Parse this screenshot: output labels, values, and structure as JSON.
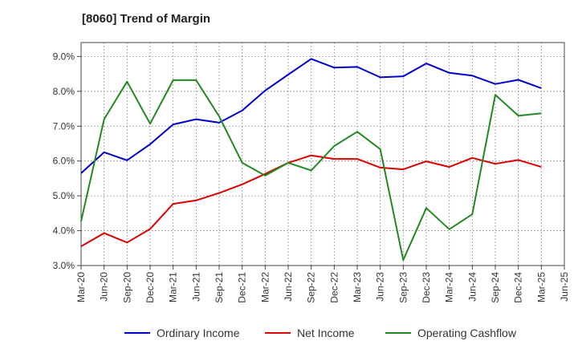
{
  "chart_data": {
    "type": "line",
    "title": "[8060]  Trend of Margin",
    "xlabel": "",
    "ylabel": "",
    "ylim": [
      3.0,
      9.4
    ],
    "y_ticks": [
      3.0,
      4.0,
      5.0,
      6.0,
      7.0,
      8.0,
      9.0
    ],
    "y_tick_labels": [
      "3.0%",
      "4.0%",
      "5.0%",
      "6.0%",
      "7.0%",
      "8.0%",
      "9.0%"
    ],
    "grid": true,
    "legend_position": "bottom",
    "x_tick_labels": [
      "Mar-20",
      "Jun-20",
      "Sep-20",
      "Dec-20",
      "Mar-21",
      "Jun-21",
      "Sep-21",
      "Dec-21",
      "Mar-22",
      "Jun-22",
      "Sep-22",
      "Dec-22",
      "Mar-23",
      "Jun-23",
      "Sep-23",
      "Dec-23",
      "Mar-24",
      "Jun-24",
      "Sep-24",
      "Dec-24",
      "Mar-25",
      "Jun-25"
    ],
    "categories": [
      "Mar-20",
      "Jun-20",
      "Sep-20",
      "Dec-20",
      "Mar-21",
      "Jun-21",
      "Sep-21",
      "Dec-21",
      "Mar-22",
      "Jun-22",
      "Sep-22",
      "Dec-22",
      "Mar-23",
      "Jun-23",
      "Sep-23",
      "Dec-23",
      "Mar-24",
      "Jun-24",
      "Sep-24",
      "Dec-24",
      "Mar-25"
    ],
    "series": [
      {
        "name": "Ordinary Income",
        "color": "#0000cc",
        "values": [
          5.65,
          6.25,
          6.02,
          6.48,
          7.05,
          7.2,
          7.1,
          7.45,
          8.02,
          8.48,
          8.93,
          8.68,
          8.7,
          8.4,
          8.43,
          8.8,
          8.53,
          8.45,
          8.21,
          8.33,
          8.09
        ]
      },
      {
        "name": "Net Income",
        "color": "#dd0000",
        "values": [
          3.55,
          3.93,
          3.66,
          4.05,
          4.77,
          4.87,
          5.08,
          5.33,
          5.63,
          5.95,
          6.16,
          6.06,
          6.06,
          5.81,
          5.76,
          5.99,
          5.83,
          6.09,
          5.92,
          6.03,
          5.83
        ]
      },
      {
        "name": "Operating Cashflow",
        "color": "#228822",
        "values": [
          4.27,
          7.2,
          8.28,
          7.07,
          8.32,
          8.32,
          7.28,
          5.95,
          5.58,
          5.95,
          5.73,
          6.43,
          6.84,
          6.34,
          3.16,
          4.65,
          4.04,
          4.47,
          7.9,
          7.3,
          7.37
        ]
      }
    ]
  }
}
